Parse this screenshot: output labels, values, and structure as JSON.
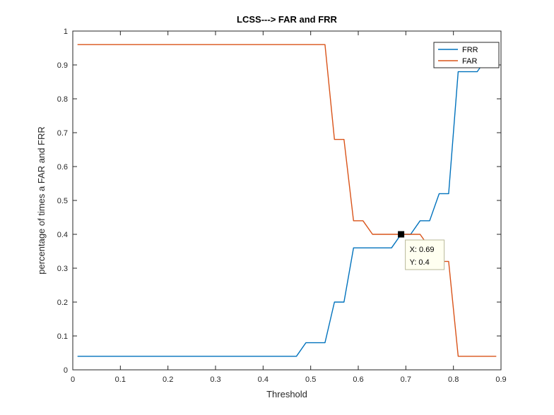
{
  "chart_data": {
    "type": "line",
    "title": "LCSS---> FAR and FRR",
    "xlabel": "Threshold",
    "ylabel": "percentage of times a FAR and FRR",
    "xlim": [
      0,
      0.9
    ],
    "ylim": [
      0,
      1
    ],
    "xticks": [
      "0",
      "0.1",
      "0.2",
      "0.3",
      "0.4",
      "0.5",
      "0.6",
      "0.7",
      "0.8",
      "0.9"
    ],
    "yticks": [
      "0",
      "0.1",
      "0.2",
      "0.3",
      "0.4",
      "0.5",
      "0.6",
      "0.7",
      "0.8",
      "0.9",
      "1"
    ],
    "grid": false,
    "legend_position": "top-right",
    "series": [
      {
        "name": "FRR",
        "color": "#0072BD",
        "x": [
          0.01,
          0.47,
          0.49,
          0.53,
          0.55,
          0.57,
          0.59,
          0.67,
          0.69,
          0.71,
          0.73,
          0.75,
          0.77,
          0.79,
          0.81,
          0.85,
          0.87,
          0.89
        ],
        "y": [
          0.04,
          0.04,
          0.08,
          0.08,
          0.2,
          0.2,
          0.36,
          0.36,
          0.4,
          0.4,
          0.44,
          0.44,
          0.52,
          0.52,
          0.88,
          0.88,
          0.92,
          0.92
        ]
      },
      {
        "name": "FAR",
        "color": "#D95319",
        "x": [
          0.01,
          0.53,
          0.55,
          0.57,
          0.59,
          0.61,
          0.63,
          0.73,
          0.75,
          0.77,
          0.79,
          0.81,
          0.89
        ],
        "y": [
          0.96,
          0.96,
          0.68,
          0.68,
          0.44,
          0.44,
          0.4,
          0.4,
          0.36,
          0.32,
          0.32,
          0.04,
          0.04
        ]
      }
    ],
    "datatip": {
      "x_value": 0.69,
      "y_value": 0.4,
      "x_text": "X: 0.69",
      "y_text": "Y: 0.4"
    }
  }
}
